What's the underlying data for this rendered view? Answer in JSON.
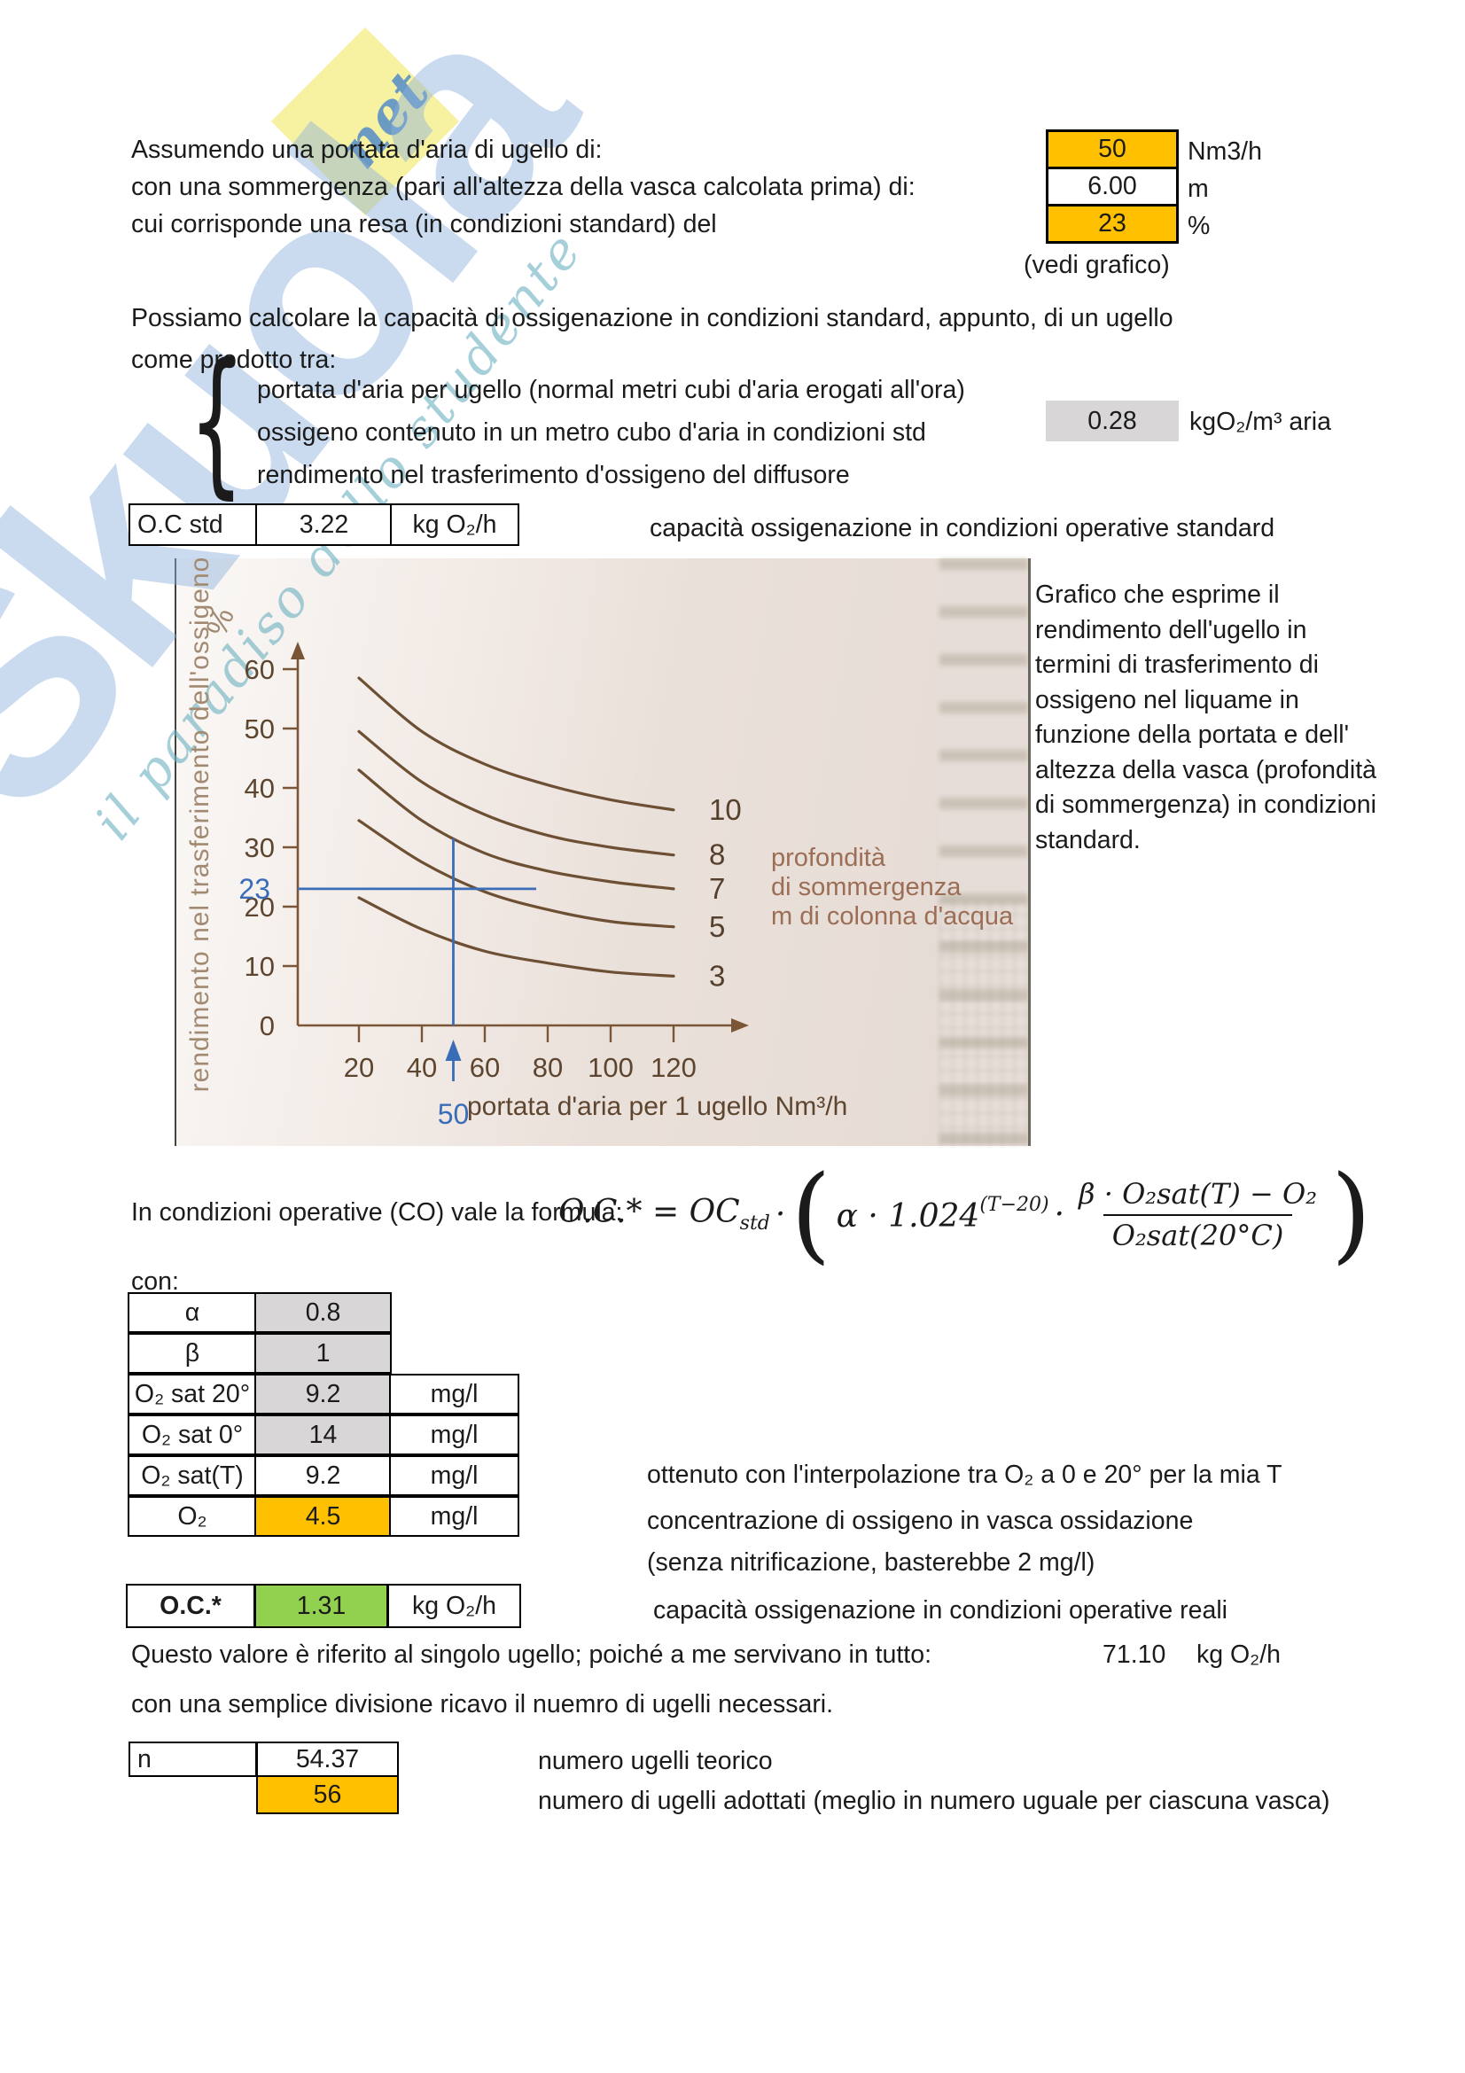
{
  "colors": {
    "highlight_orange": "#ffc000",
    "cell_gray": "#d8d6d6",
    "result_green": "#92d050",
    "annotation_blue": "#3a6db8",
    "curve_brown": "#6d4f33",
    "axis_brown": "#7a5636",
    "tick_text_brown": "#5d452f",
    "depth_text_brown": "#9b6e55",
    "ylabel_tan": "#a28a72",
    "watermark_diamond_yellow": "#f6f2a2"
  },
  "header": {
    "rows": [
      {
        "label": "Assumendo una portata d'aria di ugello di:",
        "value": "50",
        "unit": "Nm3/h"
      },
      {
        "label": "con una sommergenza (pari all'altezza della vasca calcolata prima) di:",
        "value": "6.00",
        "unit": "m"
      },
      {
        "label": "cui corrisponde una resa (in condizioni standard) del",
        "value": "23",
        "unit": "%"
      }
    ],
    "note": "(vedi grafico)"
  },
  "intro": {
    "line1": "Possiamo calcolare la capacità di ossigenazione in condizioni standard, appunto, di un ugello",
    "line2": "come prodotto tra:",
    "brace": "{",
    "items": [
      "portata d'aria per ugello (normal metri cubi d'aria erogati all'ora)",
      "ossigeno contenuto in un metro cubo d'aria in condizioni std",
      "rendimento nel trasferimento d'ossigeno del diffusore"
    ],
    "o2_value": "0.28",
    "o2_unit": "kgO₂/m³ aria"
  },
  "oc_std": {
    "label": "O.C std",
    "value": "3.22",
    "unit": "kg O₂/h",
    "caption": "capacità ossigenazione in condizioni operative standard"
  },
  "chart_note": "Grafico che esprime il\nrendimento dell'ugello in\ntermini di trasferimento di\nossigeno nel liquame in\nfunzione della portata e dell'\naltezza della vasca (profondità\ndi sommergenza) in condizioni\nstandard.",
  "chart_data": {
    "type": "line",
    "xlabel": "portata d'aria per 1 ugello Nm³/h",
    "ylabel": "rendimento nel trasferimento dell'ossigeno",
    "ylabel_unit": "%",
    "xlim": [
      0,
      130
    ],
    "ylim": [
      0,
      65
    ],
    "xticks": [
      20,
      40,
      60,
      80,
      100,
      120
    ],
    "yticks": [
      0,
      10,
      20,
      30,
      40,
      50,
      60
    ],
    "grid": false,
    "x": [
      20,
      40,
      60,
      80,
      100,
      120
    ],
    "series": [
      {
        "name": "10",
        "values": [
          58.5,
          49.5,
          44.0,
          40.5,
          38.0,
          36.3
        ]
      },
      {
        "name": "8",
        "values": [
          49.5,
          41.0,
          35.5,
          32.0,
          30.0,
          28.7
        ]
      },
      {
        "name": "7",
        "values": [
          43.0,
          34.5,
          29.0,
          26.0,
          24.2,
          23.0
        ]
      },
      {
        "name": "5",
        "values": [
          34.5,
          27.5,
          22.5,
          19.5,
          17.5,
          16.6
        ]
      },
      {
        "name": "3",
        "values": [
          21.5,
          16.2,
          12.5,
          10.5,
          9.0,
          8.3
        ]
      }
    ],
    "series_label": "profondità\ndi sommergenza\nm di colonna d'acqua",
    "legend_position": "right-of-lines",
    "annotation": {
      "x": 50,
      "y": 23,
      "curve_top": 31.5,
      "x_label": "50",
      "y_label": "23"
    }
  },
  "formula": {
    "intro": "In condizioni operative (CO) vale la formula:",
    "lhs": "O.C.* = OC",
    "lhs_sub": "std",
    "mult": "·",
    "paren_open": "(",
    "factor": "α · 1.024",
    "exponent": "(T−20)",
    "mult2": "·",
    "numerator": "β · O₂sat(T) − O₂",
    "denominator": "O₂sat(20°C)",
    "paren_close": ")"
  },
  "con_intro": "con:",
  "con_table": {
    "rows": [
      {
        "label": "α",
        "value": "0.8",
        "unit": ""
      },
      {
        "label": "β",
        "value": "1",
        "unit": ""
      },
      {
        "label": "O₂ sat 20°",
        "value": "9.2",
        "unit": "mg/l"
      },
      {
        "label": "O₂ sat 0°",
        "value": "14",
        "unit": "mg/l"
      },
      {
        "label": "O₂ sat(T)",
        "value": "9.2",
        "unit": "mg/l"
      },
      {
        "label": "O₂",
        "value": "4.5",
        "unit": "mg/l"
      }
    ],
    "annotations": [
      "ottenuto con l'interpolazione tra O₂ a 0 e 20° per la mia T",
      "concentrazione di ossigeno in vasca ossidazione",
      "(senza nitrificazione, basterebbe 2 mg/l)"
    ]
  },
  "oc_star": {
    "label": "O.C.*",
    "value": "1.31",
    "unit": "kg O₂/h",
    "caption": "capacità ossigenazione in condizioni operative reali"
  },
  "totals": {
    "line1": "Questo valore è riferito al singolo ugello; poiché  a me servivano in tutto:",
    "value": "71.10",
    "unit": "kg O₂/h",
    "line2": "con una semplice divisione ricavo il nuemro di ugelli necessari."
  },
  "nozzles": {
    "label": "n",
    "theoretical": "54.37",
    "caption1": "numero ugelli teorico",
    "adopted": "56",
    "caption2": "numero di ugelli adottati (meglio in numero uguale per ciascuna vasca)"
  },
  "watermark": {
    "brand": "Skuola",
    "tld": "net",
    "tagline": "il paradiso dello studente"
  }
}
